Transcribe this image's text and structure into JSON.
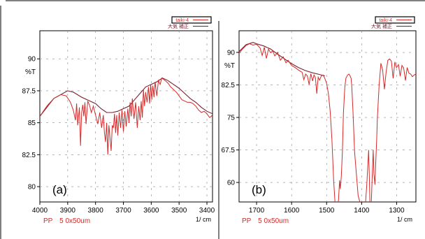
{
  "colors": {
    "spectrum": "#d42a2a",
    "corrected": "#7a1f2e",
    "axis": "#000000",
    "grid": "#8a8a8a",
    "sample_label": "#d42a2a"
  },
  "chart_data": [
    {
      "type": "line",
      "panel_label": "(a)",
      "ylabel": "%T",
      "xlabel": "1/ cm",
      "sample_label": "PP　5 0x50um",
      "x_reversed": true,
      "xlim": [
        4000,
        3380
      ],
      "ylim": [
        78.8,
        92.2
      ],
      "x_ticks": [
        4000,
        3900,
        3800,
        3700,
        3600,
        3500,
        3400
      ],
      "y_ticks": [
        80,
        82.5,
        85,
        87.5,
        90
      ],
      "y_tick_labels": [
        "80",
        "82.5",
        "85",
        "87.5",
        "90"
      ],
      "grid": true,
      "legend": {
        "placement": "top-right",
        "entries": [
          {
            "label": "taiki-4",
            "color": "#d42a2a"
          },
          {
            "label": "大気 補正",
            "color": "#7a1f2e"
          }
        ]
      },
      "series": [
        {
          "name": "taiki-4",
          "color": "#d42a2a",
          "x": [
            4000,
            3975,
            3950,
            3925,
            3905,
            3890,
            3880,
            3872,
            3868,
            3864,
            3858,
            3854,
            3850,
            3846,
            3842,
            3838,
            3834,
            3828,
            3822,
            3815,
            3808,
            3800,
            3792,
            3785,
            3778,
            3772,
            3768,
            3764,
            3760,
            3756,
            3752,
            3748,
            3744,
            3740,
            3736,
            3732,
            3728,
            3724,
            3720,
            3715,
            3710,
            3705,
            3700,
            3695,
            3690,
            3684,
            3680,
            3676,
            3672,
            3668,
            3662,
            3656,
            3650,
            3645,
            3640,
            3636,
            3632,
            3628,
            3624,
            3620,
            3615,
            3610,
            3606,
            3602,
            3598,
            3594,
            3590,
            3586,
            3580,
            3574,
            3568,
            3562,
            3556,
            3550,
            3540,
            3530,
            3520,
            3510,
            3500,
            3490,
            3480,
            3470,
            3460,
            3450,
            3440,
            3430,
            3420,
            3410,
            3400,
            3390,
            3380
          ],
          "y": [
            85.5,
            86.3,
            86.9,
            87.2,
            87.1,
            86.6,
            86.0,
            85.2,
            86.5,
            84.8,
            86.2,
            83.2,
            85.8,
            86.4,
            85.5,
            86.6,
            84.9,
            86.7,
            86.4,
            85.8,
            86.3,
            85.6,
            84.9,
            85.8,
            84.6,
            85.6,
            84.2,
            83.5,
            85.0,
            82.5,
            84.8,
            83.8,
            82.8,
            84.8,
            84.6,
            85.7,
            84.2,
            85.6,
            84.0,
            85.8,
            84.6,
            86.0,
            84.3,
            85.9,
            84.7,
            86.1,
            85.0,
            86.6,
            85.5,
            86.9,
            85.3,
            86.6,
            84.6,
            86.3,
            85.2,
            86.7,
            85.4,
            87.6,
            86.3,
            87.4,
            86.6,
            87.8,
            86.5,
            88.0,
            86.8,
            87.9,
            87.0,
            88.2,
            87.1,
            88.3,
            88.0,
            88.5,
            88.4,
            88.3,
            88.1,
            87.8,
            87.6,
            87.4,
            87.1,
            86.8,
            86.7,
            86.6,
            86.6,
            86.5,
            86.3,
            86.0,
            85.8,
            85.9,
            85.7,
            85.4,
            85.6
          ]
        },
        {
          "name": "大気 補正",
          "color": "#7a1f2e",
          "x": [
            4000,
            3950,
            3900,
            3880,
            3850,
            3820,
            3800,
            3780,
            3760,
            3740,
            3720,
            3700,
            3680,
            3660,
            3640,
            3620,
            3600,
            3580,
            3560,
            3540,
            3520,
            3500,
            3480,
            3460,
            3440,
            3420,
            3400,
            3380
          ],
          "y": [
            85.5,
            86.9,
            87.5,
            87.4,
            87.0,
            86.7,
            86.5,
            86.1,
            85.8,
            85.8,
            85.9,
            86.1,
            86.3,
            86.8,
            87.3,
            87.8,
            88.0,
            88.2,
            88.5,
            88.3,
            88.0,
            87.7,
            87.3,
            86.9,
            86.6,
            86.2,
            85.9,
            85.7
          ]
        }
      ]
    },
    {
      "type": "line",
      "panel_label": "(b)",
      "ylabel": "%T",
      "xlabel": "1/ cm",
      "sample_label": "PP　5 0x50um",
      "x_reversed": true,
      "xlim": [
        1750,
        1245
      ],
      "ylim": [
        55.5,
        95.0
      ],
      "x_ticks": [
        1700,
        1600,
        1500,
        1400,
        1300
      ],
      "y_ticks": [
        60,
        67.5,
        75,
        82.5,
        90
      ],
      "y_tick_labels": [
        "60",
        "67.5",
        "75",
        "82.5",
        "90"
      ],
      "grid": true,
      "legend": {
        "placement": "top-right",
        "entries": [
          {
            "label": "taiki-4",
            "color": "#d42a2a"
          },
          {
            "label": "大気 補正",
            "color": "#7a1f2e"
          }
        ]
      },
      "series": [
        {
          "name": "taiki-4",
          "color": "#d42a2a",
          "x": [
            1750,
            1740,
            1730,
            1720,
            1710,
            1700,
            1690,
            1684,
            1678,
            1672,
            1666,
            1660,
            1654,
            1648,
            1640,
            1632,
            1624,
            1616,
            1610,
            1600,
            1590,
            1580,
            1570,
            1565,
            1560,
            1555,
            1550,
            1545,
            1540,
            1536,
            1532,
            1528,
            1524,
            1520,
            1515,
            1510,
            1505,
            1500,
            1495,
            1490,
            1485,
            1480,
            1475,
            1470,
            1466,
            1463,
            1461,
            1458,
            1455,
            1452,
            1448,
            1445,
            1440,
            1436,
            1433,
            1430,
            1428,
            1425,
            1420,
            1410,
            1400,
            1390,
            1385,
            1380,
            1378,
            1376,
            1373,
            1370,
            1367,
            1365,
            1362,
            1360,
            1357,
            1355,
            1350,
            1345,
            1340,
            1335,
            1330,
            1325,
            1320,
            1315,
            1310,
            1305,
            1300,
            1295,
            1290,
            1285,
            1280,
            1275,
            1270,
            1265,
            1260,
            1255,
            1250,
            1245
          ],
          "y": [
            89.8,
            90.8,
            91.6,
            92.0,
            91.7,
            91.9,
            91.0,
            89.3,
            91.2,
            88.6,
            90.8,
            89.9,
            90.4,
            89.2,
            90.0,
            88.2,
            89.0,
            87.6,
            88.2,
            87.0,
            86.5,
            85.9,
            85.4,
            83.7,
            85.0,
            84.6,
            82.6,
            85.1,
            83.4,
            84.8,
            84.2,
            80.5,
            84.3,
            83.6,
            84.6,
            84.8,
            84.0,
            82.9,
            80.5,
            76.5,
            70.0,
            60.5,
            54.0,
            54.0,
            56.0,
            60.5,
            58.5,
            61.5,
            67.0,
            76.0,
            82.0,
            84.0,
            84.8,
            85.0,
            84.6,
            84.0,
            82.0,
            77.0,
            67.0,
            57.0,
            54.0,
            54.0,
            60.0,
            67.5,
            61.0,
            54.0,
            54.0,
            61.0,
            67.5,
            62.0,
            59.5,
            64.0,
            70.0,
            75.0,
            82.5,
            87.5,
            86.0,
            81.5,
            85.5,
            88.2,
            88.5,
            88.0,
            84.0,
            87.8,
            86.5,
            87.2,
            84.5,
            87.0,
            86.4,
            83.5,
            86.5,
            85.2,
            85.0,
            84.4,
            84.8,
            85.0
          ]
        },
        {
          "name": "大気 補正",
          "color": "#7a1f2e",
          "x": [
            1750,
            1730,
            1710,
            1700,
            1680,
            1660,
            1640,
            1620,
            1600,
            1580,
            1560,
            1540,
            1520,
            1505
          ],
          "y": [
            90.2,
            91.8,
            92.3,
            92.0,
            91.5,
            90.8,
            89.6,
            88.5,
            87.4,
            86.5,
            85.8,
            85.3,
            84.9,
            84.6
          ]
        }
      ]
    }
  ]
}
